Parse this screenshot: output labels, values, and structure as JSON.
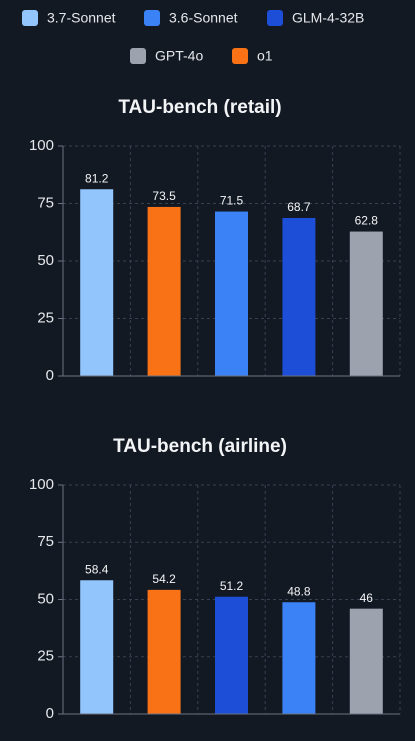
{
  "legend": [
    {
      "name": "3.7-Sonnet",
      "color": "#93c5fd"
    },
    {
      "name": "3.6-Sonnet",
      "color": "#3b82f6"
    },
    {
      "name": "GLM-4-32B",
      "color": "#1d4ed8"
    },
    {
      "name": "GPT-4o",
      "color": "#9ca3af"
    },
    {
      "name": "o1",
      "color": "#f97316"
    }
  ],
  "chart_data": [
    {
      "type": "bar",
      "title": "TAU-bench (retail)",
      "categories": [
        null,
        null,
        null,
        null,
        null
      ],
      "values": [
        81.2,
        73.5,
        71.5,
        68.7,
        62.8
      ],
      "colors": [
        "#93c5fd",
        "#f97316",
        "#3b82f6",
        "#1d4ed8",
        "#9ca3af"
      ],
      "ylim": [
        0,
        100
      ],
      "yticks": [
        0,
        25,
        50,
        75,
        100
      ],
      "grid": true
    },
    {
      "type": "bar",
      "title": "TAU-bench (airline)",
      "categories": [
        null,
        null,
        null,
        null,
        null
      ],
      "values": [
        58.4,
        54.2,
        51.2,
        48.8,
        46
      ],
      "colors": [
        "#93c5fd",
        "#f97316",
        "#1d4ed8",
        "#3b82f6",
        "#9ca3af"
      ],
      "ylim": [
        0,
        100
      ],
      "yticks": [
        0,
        25,
        50,
        75,
        100
      ],
      "grid": true
    }
  ]
}
